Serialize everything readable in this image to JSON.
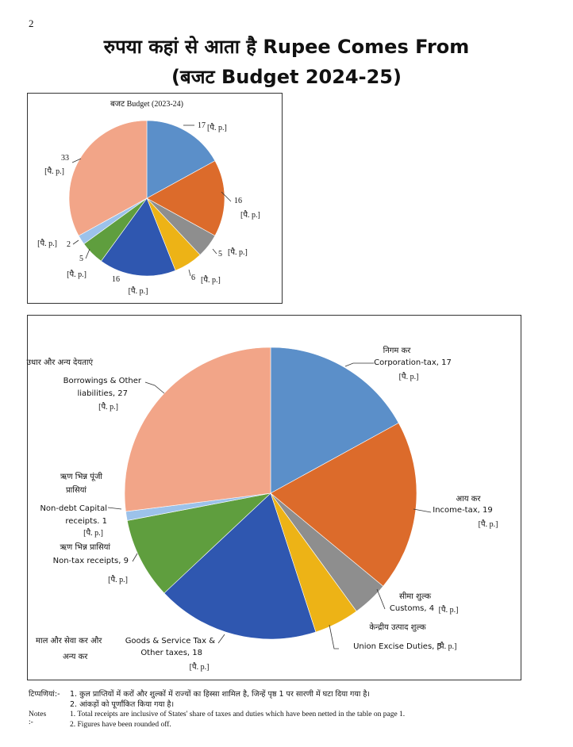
{
  "page": {
    "page_number": "2",
    "title_line1": "रुपया कहां से आता है Rupee Comes From",
    "title_line2": "(बजट Budget 2024-25)"
  },
  "chart_data": [
    {
      "type": "pie",
      "title": "बजट Budget (2023-24)",
      "unit_label": "[पै. p.]",
      "slices": [
        {
          "label": "",
          "value": 17,
          "color": "#5B8FC9"
        },
        {
          "label": "",
          "value": 16,
          "color": "#DC6B2B"
        },
        {
          "label": "",
          "value": 5,
          "color": "#8E8E8E"
        },
        {
          "label": "",
          "value": 6,
          "color": "#EDB316"
        },
        {
          "label": "",
          "value": 16,
          "color": "#2F57B0"
        },
        {
          "label": "",
          "value": 5,
          "color": "#5F9E3E"
        },
        {
          "label": "",
          "value": 2,
          "color": "#9CC2EA"
        },
        {
          "label": "",
          "value": 33,
          "color": "#F2A588"
        }
      ]
    },
    {
      "type": "pie",
      "title": "",
      "unit_label": "[पै. p.]",
      "slices": [
        {
          "label_hi": "निगम कर",
          "label_en": "Corporation-tax, 17",
          "value": 17,
          "color": "#5B8FC9"
        },
        {
          "label_hi": "आय कर",
          "label_en": "Income-tax, 19",
          "value": 19,
          "color": "#DC6B2B"
        },
        {
          "label_hi": "सीमा शुल्क",
          "label_en": "Customs, 4",
          "value": 4,
          "color": "#8E8E8E"
        },
        {
          "label_hi": "केन्द्रीय उत्पाद शुल्क",
          "label_en": "Union Excise Duties, 5",
          "value": 5,
          "color": "#EDB316"
        },
        {
          "label_hi": "माल और सेवा कर और अन्य कर",
          "label_en": "Goods & Service Tax & Other taxes, 18",
          "value": 18,
          "color": "#2F57B0"
        },
        {
          "label_hi": "ऋण भिन्न प्रासियां",
          "label_en": "Non-tax receipts, 9",
          "value": 9,
          "color": "#5F9E3E"
        },
        {
          "label_hi": "ऋण भिन्न पूंजी प्रासियां",
          "label_en": "Non-debt Capital receipts. 1",
          "value": 1,
          "color": "#9CC2EA"
        },
        {
          "label_hi": "उधार और अन्य देयताएं",
          "label_en": "Borrowings & Other liabilities, 27",
          "value": 27,
          "color": "#F2A588"
        }
      ]
    }
  ],
  "notes": {
    "label_hi": "टिप्पणियां:-",
    "note1_hi": "1. कुल प्राप्तियों में करों और शुल्कों में राज्यों का हिस्सा शामिल है, जिन्हें पृष्ठ 1 पर सारणी में घटा दिया गया है।",
    "note2_hi": "2. आंकड़ों को पूर्णांकित किया गया है।",
    "label_en": "Notes :-",
    "note1_en": "1. Total receipts are inclusive of States' share of taxes and duties which have been netted in the table on page 1.",
    "note2_en": "2. Figures have been rounded off."
  }
}
